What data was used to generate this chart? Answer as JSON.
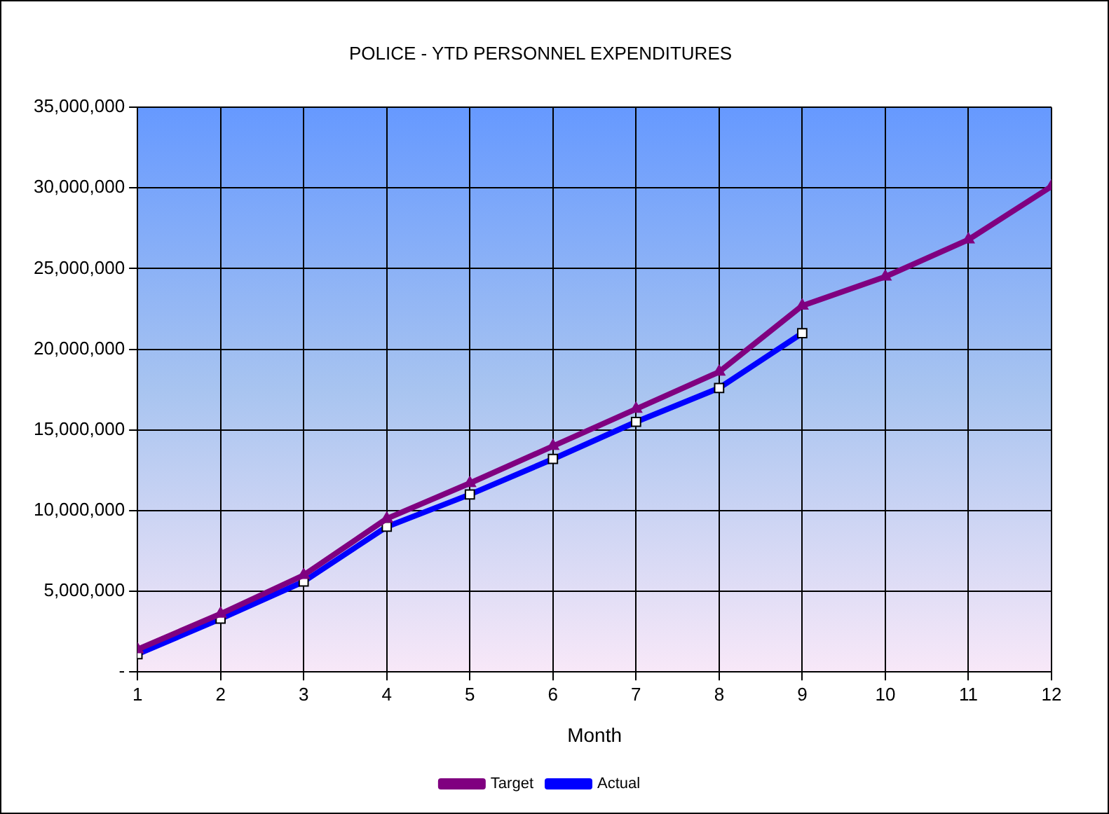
{
  "chart_data": {
    "type": "line",
    "title": "POLICE - YTD PERSONNEL EXPENDITURES",
    "xlabel": "Month",
    "x": [
      1,
      2,
      3,
      4,
      5,
      6,
      7,
      8,
      9,
      10,
      11,
      12
    ],
    "xlim": [
      1,
      12
    ],
    "xticks": [
      1,
      2,
      3,
      4,
      5,
      6,
      7,
      8,
      9,
      10,
      11,
      12
    ],
    "series": [
      {
        "name": "Target",
        "color": "#800080",
        "marker": "triangle",
        "values": [
          1400000,
          3600000,
          6000000,
          9500000,
          11700000,
          14000000,
          16300000,
          18600000,
          22700000,
          24500000,
          26800000,
          30100000
        ]
      },
      {
        "name": "Actual",
        "color": "#0000ff",
        "marker": "square",
        "values": [
          1100000,
          3300000,
          5600000,
          9000000,
          11000000,
          13200000,
          15500000,
          17600000,
          21000000,
          null,
          null,
          null
        ]
      }
    ],
    "ylim": [
      0,
      35000000
    ],
    "yticks": [
      {
        "value": 0,
        "label": "-"
      },
      {
        "value": 5000000,
        "label": "5,000,000"
      },
      {
        "value": 10000000,
        "label": "10,000,000"
      },
      {
        "value": 15000000,
        "label": "15,000,000"
      },
      {
        "value": 20000000,
        "label": "20,000,000"
      },
      {
        "value": 25000000,
        "label": "25,000,000"
      },
      {
        "value": 30000000,
        "label": "30,000,000"
      },
      {
        "value": 35000000,
        "label": "35,000,000"
      }
    ],
    "grid": true,
    "legend": "bottom",
    "line_style": "solid"
  }
}
